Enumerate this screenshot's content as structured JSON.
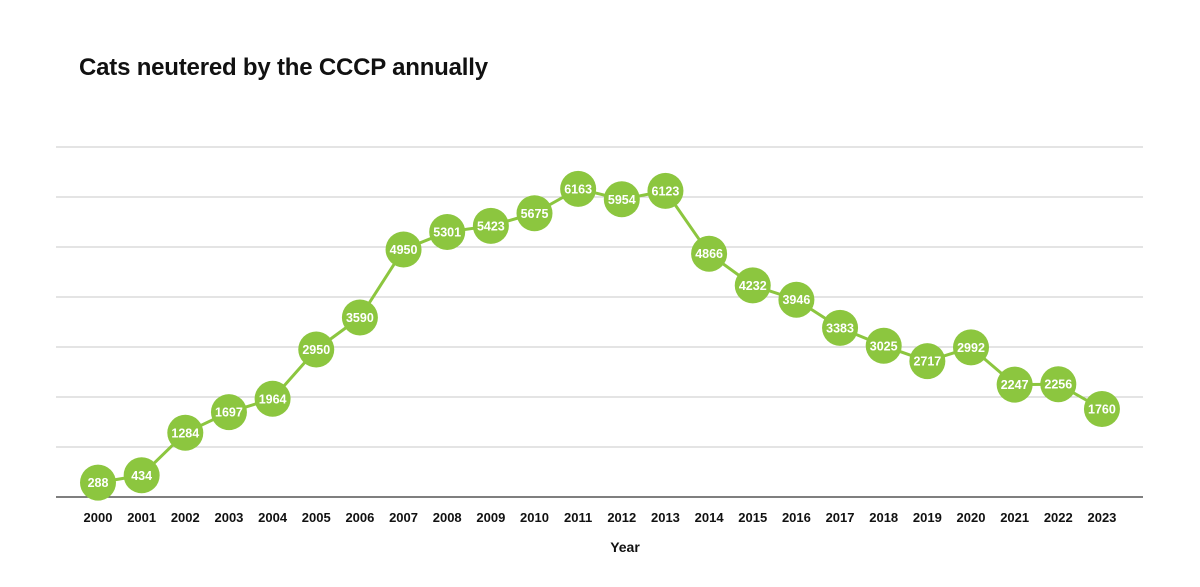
{
  "chart_data": {
    "type": "line",
    "title": "Cats neutered by the CCCP annually",
    "xlabel": "Year",
    "ylabel": "",
    "categories": [
      "2000",
      "2001",
      "2002",
      "2003",
      "2004",
      "2005",
      "2006",
      "2007",
      "2008",
      "2009",
      "2010",
      "2011",
      "2012",
      "2013",
      "2014",
      "2015",
      "2016",
      "2017",
      "2018",
      "2019",
      "2020",
      "2021",
      "2022",
      "2023"
    ],
    "series": [
      {
        "values": [
          288,
          434,
          1284,
          1697,
          1964,
          2950,
          3590,
          4950,
          5301,
          5423,
          5675,
          6163,
          5954,
          6123,
          4866,
          4232,
          3946,
          3383,
          3025,
          2717,
          2992,
          2247,
          2256,
          1760
        ]
      }
    ],
    "ylim": [
      0,
      7000
    ],
    "grid": true,
    "data_labels": true,
    "legend": "none",
    "colors": {
      "series": "#8cc63f",
      "marker_text": "#ffffff",
      "grid": "#c8c8c8",
      "axis": "#555555"
    }
  }
}
